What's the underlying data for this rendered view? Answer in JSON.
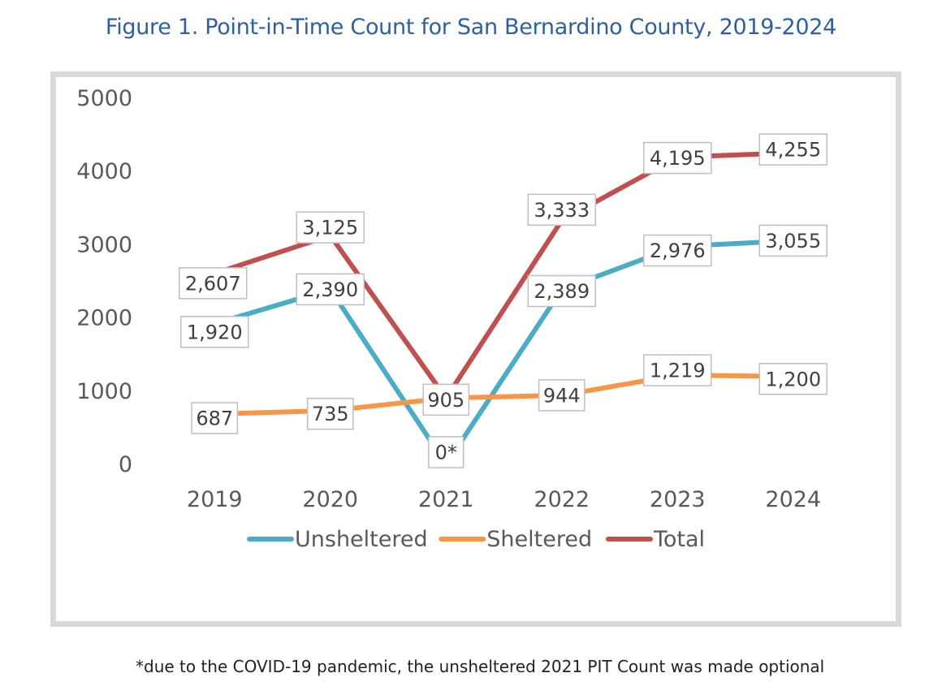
{
  "page": {
    "title": "Figure 1. Point-in-Time Count for San Bernardino County, 2019-2024",
    "footnote": "*due to the COVID-19 pandemic, the unsheltered 2021 PIT Count was made optional"
  },
  "chart_data": {
    "type": "line",
    "title": "Figure 1. Point-in-Time Count for San Bernardino County, 2019-2024",
    "xlabel": "",
    "ylabel": "",
    "ylim": [
      0,
      5000
    ],
    "yticks": [
      "0",
      "1000",
      "2000",
      "3000",
      "4000",
      "5000"
    ],
    "grid": false,
    "legend_position": "bottom",
    "categories": [
      "2019",
      "2020",
      "2021",
      "2022",
      "2023",
      "2024"
    ],
    "series": [
      {
        "name": "Unsheltered",
        "color": "#4bacc6",
        "values": [
          1920,
          2390,
          0,
          2389,
          2976,
          3055
        ],
        "labels": [
          "1,920",
          "2,390",
          "0*",
          "2,389",
          "2,976",
          "3,055"
        ]
      },
      {
        "name": "Sheltered",
        "color": "#f79646",
        "values": [
          687,
          735,
          905,
          944,
          1219,
          1200
        ],
        "labels": [
          "687",
          "735",
          "905",
          "944",
          "1,219",
          "1,200"
        ]
      },
      {
        "name": "Total",
        "color": "#c0504d",
        "values": [
          2607,
          3125,
          905,
          3333,
          4195,
          4255
        ],
        "labels": [
          "2,607",
          "3,125",
          "",
          "3,333",
          "4,195",
          "4,255"
        ]
      }
    ]
  }
}
